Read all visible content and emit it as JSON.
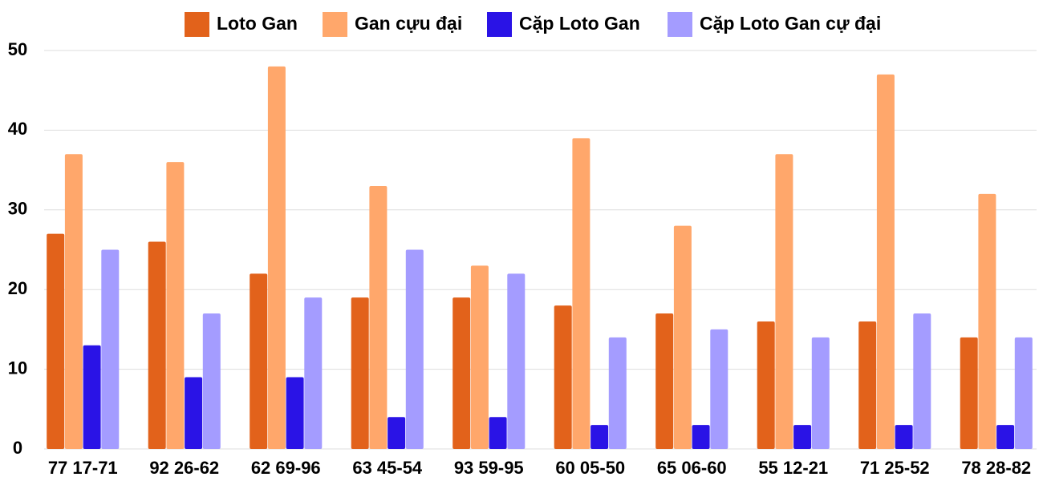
{
  "chart_data": {
    "type": "bar",
    "categories": [
      "77 17-71",
      "92 26-62",
      "62 69-96",
      "63 45-54",
      "93 59-95",
      "60 05-50",
      "65 06-60",
      "55 12-21",
      "71 25-52",
      "78 28-82"
    ],
    "series": [
      {
        "name": "Loto Gan",
        "color": "#e2621b",
        "values": [
          27,
          26,
          22,
          19,
          19,
          18,
          17,
          16,
          16,
          14
        ]
      },
      {
        "name": "Gan cựu đại",
        "color": "#ffa76b",
        "values": [
          37,
          36,
          48,
          33,
          23,
          39,
          28,
          37,
          47,
          32
        ]
      },
      {
        "name": "Cặp Loto Gan",
        "color": "#2a13e6",
        "values": [
          13,
          9,
          9,
          4,
          4,
          3,
          3,
          3,
          3,
          3
        ]
      },
      {
        "name": "Cặp Loto Gan cự đại",
        "color": "#a49cff",
        "values": [
          25,
          17,
          19,
          25,
          22,
          14,
          15,
          14,
          17,
          14
        ]
      }
    ],
    "ylim": [
      0,
      50
    ],
    "yticks": [
      0,
      10,
      20,
      30,
      40,
      50
    ],
    "grid": true,
    "legend": "top"
  }
}
